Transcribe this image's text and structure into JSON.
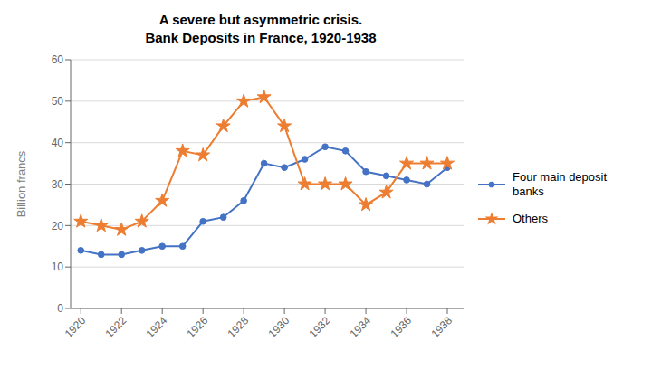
{
  "chart_data": {
    "type": "line",
    "title": "A severe but asymmetric crisis.",
    "subtitle": "Bank Deposits in France, 1920-1938",
    "ylabel": "Billion francs",
    "x": [
      1920,
      1921,
      1922,
      1923,
      1924,
      1925,
      1926,
      1927,
      1928,
      1929,
      1930,
      1931,
      1932,
      1933,
      1934,
      1935,
      1936,
      1937,
      1938
    ],
    "series": [
      {
        "name": "Four main deposit\nbanks",
        "color": "#4472C4",
        "marker": "circle",
        "values": [
          14,
          13,
          13,
          14,
          15,
          15,
          21,
          22,
          26,
          35,
          34,
          36,
          39,
          38,
          33,
          32,
          31,
          30,
          34
        ]
      },
      {
        "name": "Others",
        "color": "#ED7D31",
        "marker": "star",
        "values": [
          21,
          20,
          19,
          21,
          26,
          38,
          37,
          44,
          50,
          51,
          44,
          30,
          30,
          30,
          25,
          28,
          35,
          35,
          35
        ]
      }
    ],
    "xlim": [
      1919.5,
      1938.8
    ],
    "xticks": [
      1920,
      1922,
      1924,
      1926,
      1928,
      1930,
      1932,
      1934,
      1936,
      1938
    ],
    "ylim": [
      0,
      60
    ],
    "yticks": [
      0,
      10,
      20,
      30,
      40,
      50,
      60
    ],
    "grid": true,
    "legend": "right"
  }
}
